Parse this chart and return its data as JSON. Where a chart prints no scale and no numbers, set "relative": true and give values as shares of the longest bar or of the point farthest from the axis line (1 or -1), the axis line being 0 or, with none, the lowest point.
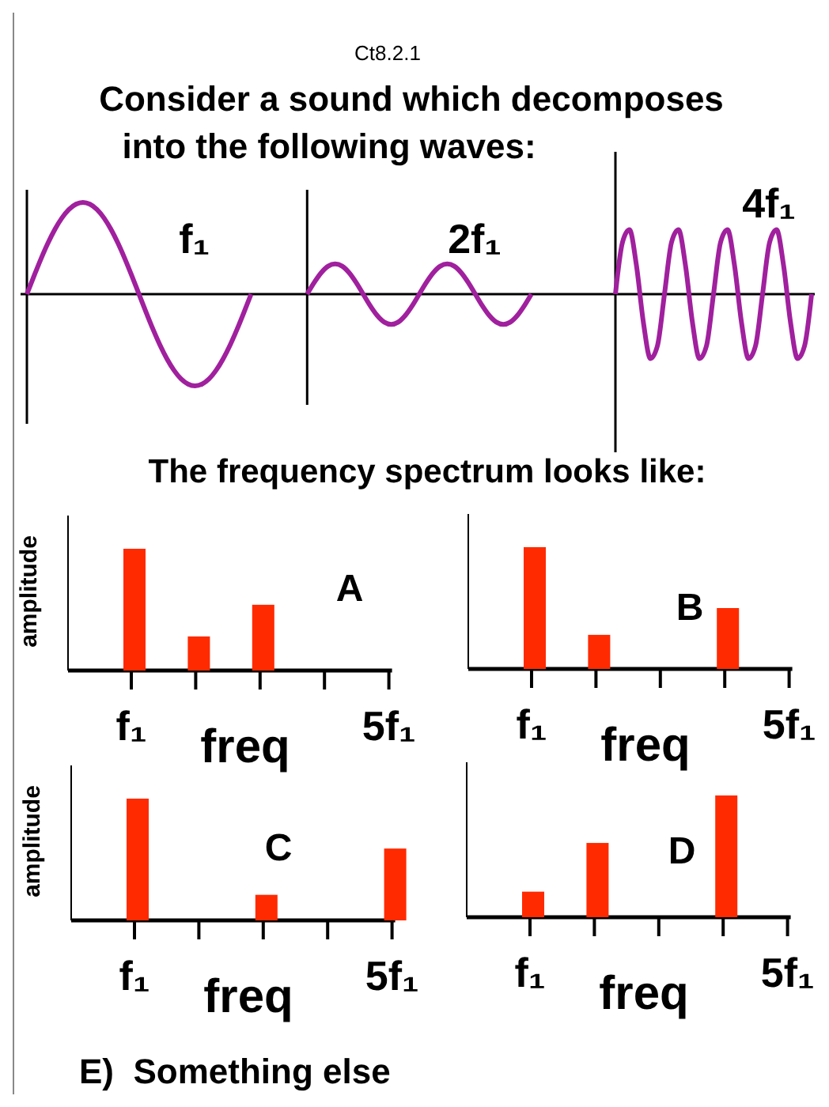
{
  "chart_data": [
    {
      "type": "line",
      "title": "Consider a sound which decomposes into the following waves:",
      "annotations": [
        "Ct8.2.1"
      ],
      "relative": true,
      "legend": false,
      "marker": "none",
      "line_style": "solid",
      "tick_labels": false,
      "grid": "x",
      "categories": [
        null,
        null,
        null,
        null,
        null,
        null,
        null,
        null,
        null,
        null,
        null,
        null,
        null,
        null,
        null,
        null,
        null,
        null,
        null,
        null,
        null,
        null,
        null,
        null,
        null,
        null,
        null,
        null,
        null,
        null,
        null,
        null,
        null,
        null,
        null,
        null,
        null,
        null,
        null,
        null,
        null,
        null,
        null,
        null,
        null,
        null,
        null,
        null,
        null,
        null,
        null,
        null,
        null,
        null,
        null,
        null,
        null,
        null,
        null,
        null,
        null,
        null,
        null,
        null,
        null,
        null,
        null,
        null,
        null,
        null,
        null,
        null,
        null,
        null,
        null,
        null,
        null,
        null,
        null,
        null,
        null,
        null,
        null,
        null,
        null,
        null,
        null,
        null,
        null,
        null,
        null,
        null,
        null,
        null,
        null,
        null,
        null,
        null,
        null,
        null,
        null,
        null,
        null,
        null,
        null,
        null,
        null,
        null,
        null,
        null,
        null,
        null,
        null
      ],
      "series": [
        {
          "name": "f₁",
          "color": "#a0209e",
          "values": [
            0,
            0.195,
            0.383,
            0.556,
            0.707,
            0.831,
            0.924,
            0.981,
            1,
            0.981,
            0.924,
            0.831,
            0.707,
            0.556,
            0.383,
            0.195,
            0,
            -0.195,
            -0.383,
            -0.556,
            -0.707,
            -0.831,
            -0.924,
            -0.981,
            -1,
            -0.981,
            -0.924,
            -0.831,
            -0.707,
            -0.556,
            -0.383,
            -0.195,
            0,
            null,
            null,
            null,
            null,
            null,
            null,
            null,
            null,
            null,
            null,
            null,
            null,
            null,
            null,
            null,
            null,
            null,
            null,
            null,
            null,
            null,
            null,
            null,
            null,
            null,
            null,
            null,
            null,
            null,
            null,
            null,
            null,
            null,
            null,
            null,
            null,
            null,
            null,
            null,
            null,
            null,
            null,
            null,
            null,
            null,
            null,
            null,
            null,
            null,
            null,
            null,
            null,
            null,
            null,
            null,
            null,
            null,
            null,
            null,
            null,
            null,
            null,
            null,
            null,
            null,
            null,
            null,
            null,
            null,
            null,
            null,
            null,
            null,
            null,
            null,
            null,
            null,
            null,
            null,
            null
          ]
        },
        {
          "name": "2f₁",
          "color": "#a0209e",
          "values": [
            null,
            null,
            null,
            null,
            null,
            null,
            null,
            null,
            null,
            null,
            null,
            null,
            null,
            null,
            null,
            null,
            null,
            null,
            null,
            null,
            null,
            null,
            null,
            null,
            null,
            null,
            null,
            null,
            null,
            null,
            null,
            null,
            null,
            null,
            null,
            null,
            null,
            null,
            null,
            null,
            0,
            0.126,
            0.233,
            0.305,
            0.33,
            0.305,
            0.233,
            0.126,
            0,
            -0.126,
            -0.233,
            -0.305,
            -0.33,
            -0.305,
            -0.233,
            -0.126,
            0,
            0.126,
            0.233,
            0.305,
            0.33,
            0.305,
            0.233,
            0.126,
            0,
            -0.126,
            -0.233,
            -0.305,
            -0.33,
            -0.305,
            -0.233,
            -0.126,
            0,
            null,
            null,
            null,
            null,
            null,
            null,
            null,
            null,
            null,
            null,
            null,
            null,
            null,
            null,
            null,
            null,
            null,
            null,
            null,
            null,
            null,
            null,
            null,
            null,
            null,
            null,
            null,
            null,
            null,
            null,
            null,
            null,
            null,
            null,
            null,
            null,
            null,
            null,
            null,
            null
          ]
        },
        {
          "name": "4f₁",
          "color": "#a0209e",
          "values": [
            null,
            null,
            null,
            null,
            null,
            null,
            null,
            null,
            null,
            null,
            null,
            null,
            null,
            null,
            null,
            null,
            null,
            null,
            null,
            null,
            null,
            null,
            null,
            null,
            null,
            null,
            null,
            null,
            null,
            null,
            null,
            null,
            null,
            null,
            null,
            null,
            null,
            null,
            null,
            null,
            null,
            null,
            null,
            null,
            null,
            null,
            null,
            null,
            null,
            null,
            null,
            null,
            null,
            null,
            null,
            null,
            null,
            null,
            null,
            null,
            null,
            null,
            null,
            null,
            null,
            null,
            null,
            null,
            null,
            null,
            null,
            null,
            null,
            null,
            null,
            null,
            null,
            null,
            null,
            null,
            null,
            null,
            null,
            null,
            0,
            0.563,
            0.702,
            0.312,
            -0.312,
            -0.702,
            -0.563,
            0,
            0.563,
            0.702,
            0.312,
            -0.312,
            -0.702,
            -0.563,
            0,
            0.563,
            0.702,
            0.312,
            -0.312,
            -0.702,
            -0.563,
            0,
            0.563,
            0.702,
            0.312,
            -0.312,
            -0.702,
            -0.563,
            0
          ]
        }
      ]
    },
    {
      "type": "bar",
      "title": "The frequency spectrum looks like:",
      "annotations": [
        "A"
      ],
      "relative": true,
      "categories": [
        "f₁",
        null,
        null,
        null,
        "5f₁"
      ],
      "values": [
        1,
        0.28,
        0.54,
        null,
        null
      ],
      "color": "#ff2a00",
      "xlabel": "freq",
      "ylabel": "amplitude",
      "tick_labels": "x"
    },
    {
      "type": "bar",
      "annotations": [
        "B"
      ],
      "relative": true,
      "categories": [
        "f₁",
        null,
        null,
        null,
        "5f₁"
      ],
      "values": [
        1,
        0.28,
        null,
        0.5,
        null
      ],
      "color": "#ff2a00",
      "xlabel": "freq",
      "tick_labels": "x"
    },
    {
      "type": "bar",
      "annotations": [
        "C"
      ],
      "relative": true,
      "categories": [
        "f₁",
        null,
        null,
        null,
        "5f₁"
      ],
      "values": [
        1,
        null,
        0.21,
        null,
        0.59
      ],
      "color": "#ff2a00",
      "xlabel": "freq",
      "ylabel": "amplitude",
      "tick_labels": "x"
    },
    {
      "type": "bar",
      "annotations": [
        "D",
        "E)  Something else"
      ],
      "relative": true,
      "categories": [
        "f₁",
        null,
        null,
        null,
        "5f₁"
      ],
      "values": [
        0.21,
        0.61,
        null,
        1,
        null
      ],
      "color": "#ff2a00",
      "xlabel": "freq",
      "tick_labels": "x"
    }
  ]
}
